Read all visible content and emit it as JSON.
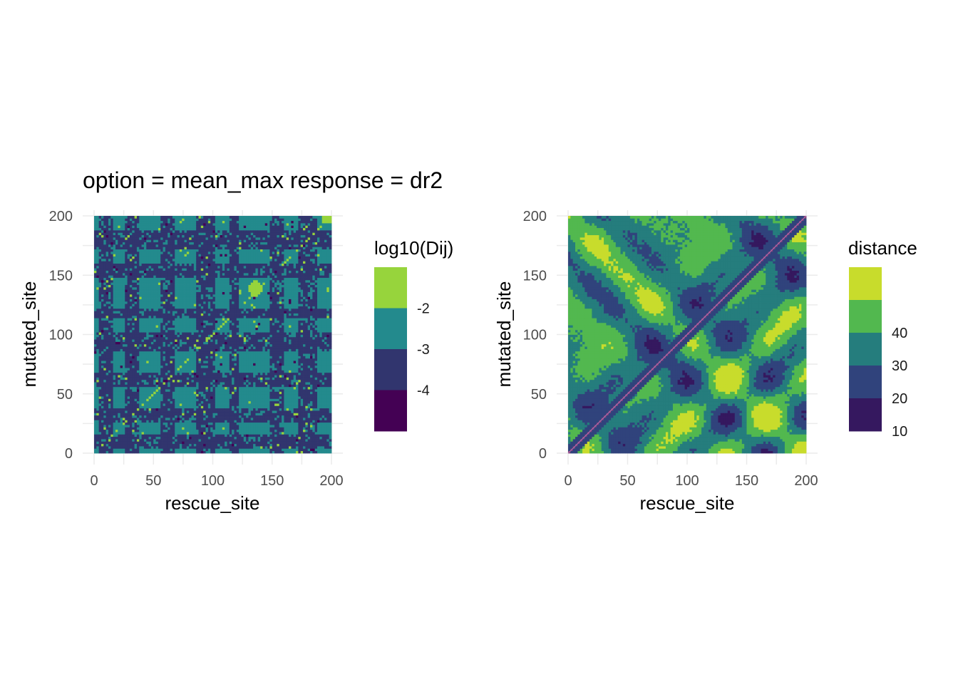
{
  "title": "option = mean_max response = dr2",
  "chart_data": [
    {
      "type": "heatmap",
      "xlabel": "rescue_site",
      "ylabel": "mutated_site",
      "xlim": [
        0,
        200
      ],
      "ylim": [
        0,
        200
      ],
      "x_ticks": [
        0,
        50,
        100,
        150,
        200
      ],
      "y_ticks": [
        0,
        50,
        100,
        150,
        200
      ],
      "x_tick_labels": [
        "0",
        "50",
        "100",
        "150",
        "200"
      ],
      "y_tick_labels": [
        "0",
        "50",
        "100",
        "150",
        "200"
      ],
      "grid": true,
      "legend": {
        "title": "log10(Dij)",
        "position": "right",
        "bins": [
          {
            "color": "#440154",
            "label": ""
          },
          {
            "color": "#31356e",
            "label": "-4"
          },
          {
            "color": "#238a8d",
            "label": "-3"
          },
          {
            "color": "#97d43c",
            "label": "-2"
          }
        ]
      },
      "pattern": "binned log10 Dij matrix; dominant teal level with dark-blue bands at rescue/mutated sites ~5-15, 25-35, 55-65, 85-100, 115-120, 150-160, 175-185; light-green cluster near (135,138) and top-right corner"
    },
    {
      "type": "heatmap",
      "xlabel": "rescue_site",
      "ylabel": "mutated_site",
      "xlim": [
        0,
        200
      ],
      "ylim": [
        0,
        200
      ],
      "x_ticks": [
        0,
        50,
        100,
        150,
        200
      ],
      "y_ticks": [
        0,
        50,
        100,
        150,
        200
      ],
      "x_tick_labels": [
        "0",
        "50",
        "100",
        "150",
        "200"
      ],
      "y_tick_labels": [
        "0",
        "50",
        "100",
        "150",
        "200"
      ],
      "grid": true,
      "legend": {
        "title": "distance",
        "position": "right",
        "bins": [
          {
            "color": "#35185f",
            "label": "10"
          },
          {
            "color": "#30437c",
            "label": "20"
          },
          {
            "color": "#257d7d",
            "label": "30"
          },
          {
            "color": "#52b84f",
            "label": "40"
          },
          {
            "color": "#c8dc2c",
            "label": ""
          }
        ]
      },
      "pattern": "binned symmetric distance matrix; near-zero distance along diagonal, anti-diagonal dark X motifs, bright maxima spots off-diagonal"
    }
  ]
}
